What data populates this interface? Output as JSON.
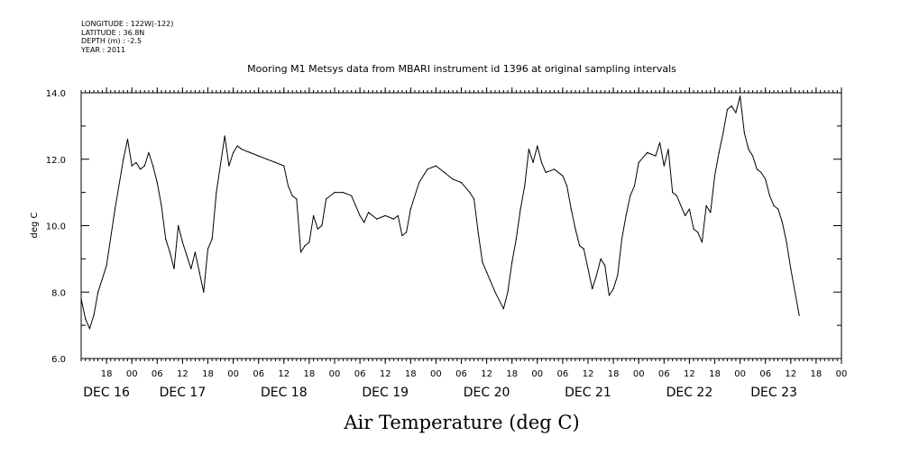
{
  "header": {
    "longitude": "LONGITUDE : 122W(-122)",
    "latitude": "LATITUDE : 36.8N",
    "depth": "DEPTH (m) : -2.5",
    "year": "YEAR : 2011"
  },
  "chart_data": {
    "type": "line",
    "title": "Mooring M1 Metsys data from MBARI instrument id 1396 at original sampling intervals",
    "xlabel": "Air Temperature (deg C)",
    "ylabel": "deg C",
    "ylim": [
      6.0,
      14.0
    ],
    "yticks": [
      "6.0",
      "8.0",
      "10.0",
      "12.0",
      "14.0"
    ],
    "xlim_hours": [
      12,
      192
    ],
    "hour_ticks": [
      {
        "h": 18,
        "label": "18"
      },
      {
        "h": 24,
        "label": "00"
      },
      {
        "h": 30,
        "label": "06"
      },
      {
        "h": 36,
        "label": "12"
      },
      {
        "h": 42,
        "label": "18"
      },
      {
        "h": 48,
        "label": "00"
      },
      {
        "h": 54,
        "label": "06"
      },
      {
        "h": 60,
        "label": "12"
      },
      {
        "h": 66,
        "label": "18"
      },
      {
        "h": 72,
        "label": "00"
      },
      {
        "h": 78,
        "label": "06"
      },
      {
        "h": 84,
        "label": "12"
      },
      {
        "h": 90,
        "label": "18"
      },
      {
        "h": 96,
        "label": "00"
      },
      {
        "h": 102,
        "label": "06"
      },
      {
        "h": 108,
        "label": "12"
      },
      {
        "h": 114,
        "label": "18"
      },
      {
        "h": 120,
        "label": "00"
      },
      {
        "h": 126,
        "label": "06"
      },
      {
        "h": 132,
        "label": "12"
      },
      {
        "h": 138,
        "label": "18"
      },
      {
        "h": 144,
        "label": "00"
      },
      {
        "h": 150,
        "label": "06"
      },
      {
        "h": 156,
        "label": "12"
      },
      {
        "h": 162,
        "label": "18"
      },
      {
        "h": 168,
        "label": "00"
      },
      {
        "h": 174,
        "label": "06"
      },
      {
        "h": 180,
        "label": "12"
      },
      {
        "h": 186,
        "label": "18"
      },
      {
        "h": 192,
        "label": "00"
      }
    ],
    "day_labels": [
      {
        "h": 18,
        "label": "DEC 16"
      },
      {
        "h": 36,
        "label": "DEC 17"
      },
      {
        "h": 60,
        "label": "DEC 18"
      },
      {
        "h": 84,
        "label": "DEC 19"
      },
      {
        "h": 108,
        "label": "DEC 20"
      },
      {
        "h": 132,
        "label": "DEC 21"
      },
      {
        "h": 156,
        "label": "DEC 22"
      },
      {
        "h": 176,
        "label": "DEC 23"
      }
    ],
    "series": [
      {
        "points": [
          [
            12,
            7.8
          ],
          [
            13,
            7.2
          ],
          [
            14,
            6.9
          ],
          [
            15,
            7.3
          ],
          [
            16,
            8.0
          ],
          [
            18,
            8.8
          ],
          [
            20,
            10.5
          ],
          [
            22,
            12.0
          ],
          [
            23,
            12.6
          ],
          [
            24,
            11.8
          ],
          [
            25,
            11.9
          ],
          [
            26,
            11.7
          ],
          [
            27,
            11.8
          ],
          [
            28,
            12.2
          ],
          [
            29,
            11.8
          ],
          [
            30,
            11.3
          ],
          [
            31,
            10.6
          ],
          [
            32,
            9.6
          ],
          [
            33,
            9.2
          ],
          [
            34,
            8.7
          ],
          [
            35,
            10.0
          ],
          [
            36,
            9.5
          ],
          [
            37,
            9.1
          ],
          [
            38,
            8.7
          ],
          [
            39,
            9.2
          ],
          [
            40,
            8.6
          ],
          [
            41,
            8.0
          ],
          [
            42,
            9.3
          ],
          [
            43,
            9.6
          ],
          [
            44,
            11.0
          ],
          [
            46,
            12.7
          ],
          [
            47,
            11.8
          ],
          [
            48,
            12.2
          ],
          [
            49,
            12.4
          ],
          [
            50,
            12.3
          ],
          [
            52,
            12.2
          ],
          [
            54,
            12.1
          ],
          [
            56,
            12.0
          ],
          [
            58,
            11.9
          ],
          [
            60,
            11.8
          ],
          [
            61,
            11.2
          ],
          [
            62,
            10.9
          ],
          [
            63,
            10.8
          ],
          [
            64,
            9.2
          ],
          [
            65,
            9.4
          ],
          [
            66,
            9.5
          ],
          [
            67,
            10.3
          ],
          [
            68,
            9.9
          ],
          [
            69,
            10.0
          ],
          [
            70,
            10.8
          ],
          [
            72,
            11.0
          ],
          [
            74,
            11.0
          ],
          [
            76,
            10.9
          ],
          [
            77,
            10.6
          ],
          [
            78,
            10.3
          ],
          [
            79,
            10.1
          ],
          [
            80,
            10.4
          ],
          [
            82,
            10.2
          ],
          [
            84,
            10.3
          ],
          [
            86,
            10.2
          ],
          [
            87,
            10.3
          ],
          [
            88,
            9.7
          ],
          [
            89,
            9.8
          ],
          [
            90,
            10.5
          ],
          [
            92,
            11.3
          ],
          [
            94,
            11.7
          ],
          [
            96,
            11.8
          ],
          [
            98,
            11.6
          ],
          [
            100,
            11.4
          ],
          [
            102,
            11.3
          ],
          [
            104,
            11.0
          ],
          [
            105,
            10.8
          ],
          [
            106,
            9.8
          ],
          [
            107,
            8.9
          ],
          [
            108,
            8.6
          ],
          [
            110,
            8.0
          ],
          [
            112,
            7.5
          ],
          [
            113,
            8.0
          ],
          [
            114,
            8.9
          ],
          [
            115,
            9.6
          ],
          [
            116,
            10.5
          ],
          [
            117,
            11.2
          ],
          [
            118,
            12.3
          ],
          [
            119,
            11.9
          ],
          [
            120,
            12.4
          ],
          [
            121,
            11.9
          ],
          [
            122,
            11.6
          ],
          [
            124,
            11.7
          ],
          [
            126,
            11.5
          ],
          [
            127,
            11.2
          ],
          [
            128,
            10.5
          ],
          [
            129,
            9.9
          ],
          [
            130,
            9.4
          ],
          [
            131,
            9.3
          ],
          [
            132,
            8.7
          ],
          [
            133,
            8.1
          ],
          [
            134,
            8.5
          ],
          [
            135,
            9.0
          ],
          [
            136,
            8.8
          ],
          [
            137,
            7.9
          ],
          [
            138,
            8.1
          ],
          [
            139,
            8.5
          ],
          [
            140,
            9.6
          ],
          [
            141,
            10.3
          ],
          [
            142,
            10.9
          ],
          [
            143,
            11.2
          ],
          [
            144,
            11.9
          ],
          [
            146,
            12.2
          ],
          [
            148,
            12.1
          ],
          [
            149,
            12.5
          ],
          [
            150,
            11.8
          ],
          [
            151,
            12.3
          ],
          [
            152,
            11.0
          ],
          [
            153,
            10.9
          ],
          [
            154,
            10.6
          ],
          [
            155,
            10.3
          ],
          [
            156,
            10.5
          ],
          [
            157,
            9.9
          ],
          [
            158,
            9.8
          ],
          [
            159,
            9.5
          ],
          [
            160,
            10.6
          ],
          [
            161,
            10.4
          ],
          [
            162,
            11.5
          ],
          [
            163,
            12.2
          ],
          [
            164,
            12.8
          ],
          [
            165,
            13.5
          ],
          [
            166,
            13.6
          ],
          [
            167,
            13.4
          ],
          [
            168,
            13.9
          ],
          [
            169,
            12.8
          ],
          [
            170,
            12.3
          ],
          [
            171,
            12.1
          ],
          [
            172,
            11.7
          ],
          [
            173,
            11.6
          ],
          [
            174,
            11.4
          ],
          [
            175,
            10.9
          ],
          [
            176,
            10.6
          ],
          [
            177,
            10.5
          ],
          [
            178,
            10.1
          ],
          [
            179,
            9.5
          ],
          [
            180,
            8.7
          ],
          [
            181,
            8.0
          ],
          [
            182,
            7.3
          ]
        ]
      }
    ]
  }
}
